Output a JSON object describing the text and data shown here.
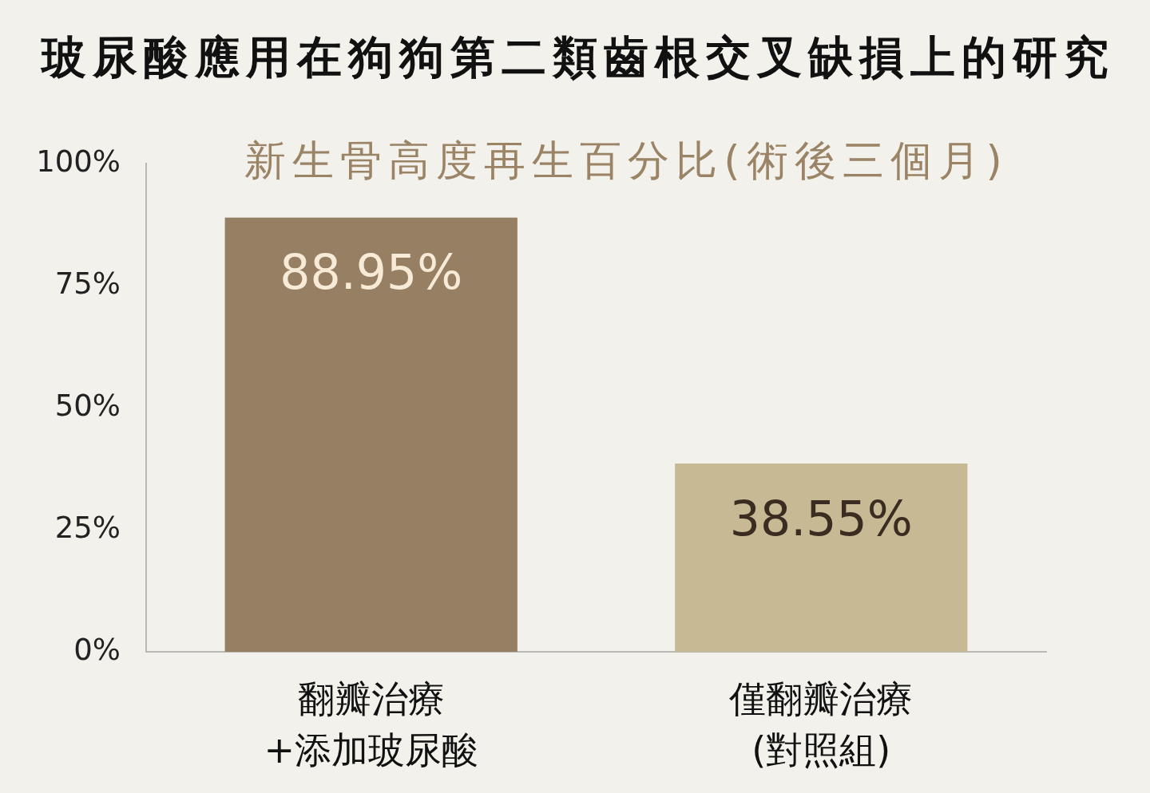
{
  "chart_data": {
    "type": "bar",
    "title": "玻尿酸應用在狗狗第二類齒根交叉缺損上的研究",
    "subtitle": "新生骨高度再生百分比(術後三個月)",
    "categories": [
      "翻瓣治療\n+添加玻尿酸",
      "僅翻瓣治療\n(對照組)"
    ],
    "values": [
      88.95,
      38.55
    ],
    "colors": [
      "#977f63",
      "#c6b994"
    ],
    "value_labels": [
      "88.95%",
      "38.55%"
    ],
    "ylim": [
      0,
      100
    ],
    "yticks": [
      {
        "value": 0,
        "label": "0%"
      },
      {
        "value": 25,
        "label": "25%"
      },
      {
        "value": 50,
        "label": "50%"
      },
      {
        "value": 75,
        "label": "75%"
      },
      {
        "value": 100,
        "label": "100%"
      }
    ],
    "grid": false
  }
}
